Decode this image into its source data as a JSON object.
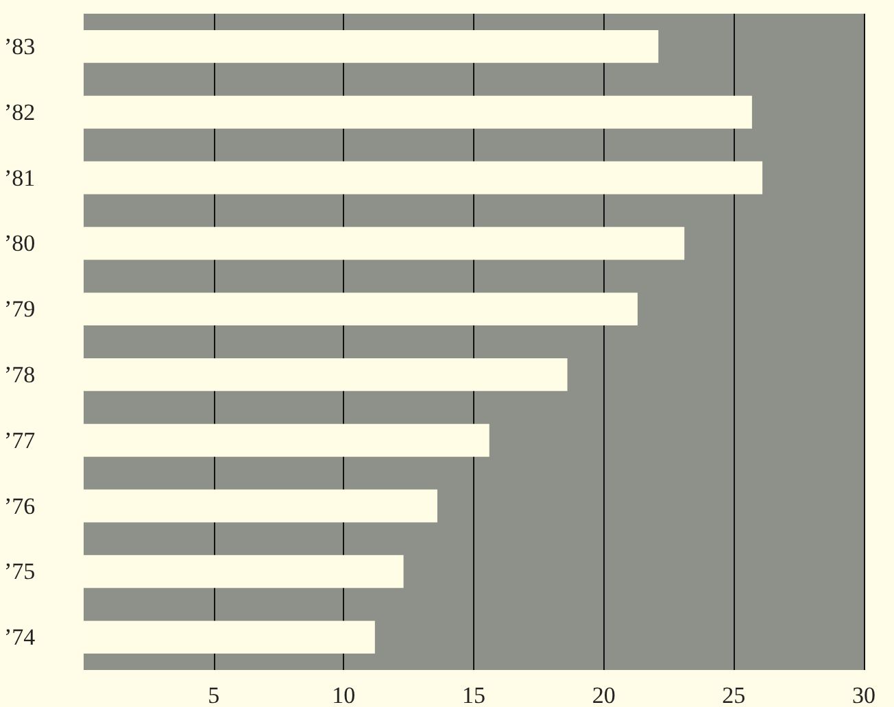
{
  "chart_data": {
    "type": "bar",
    "orientation": "horizontal",
    "categories": [
      "’83",
      "’82",
      "’81",
      "’80",
      "’79",
      "’78",
      "’77",
      "’76",
      "’75",
      "’74"
    ],
    "values": [
      22.1,
      25.7,
      26.1,
      23.1,
      21.3,
      18.6,
      15.6,
      13.6,
      12.3,
      11.2
    ],
    "color": "#fffde6",
    "xlim": [
      0,
      30
    ],
    "xticks": [
      5,
      10,
      15,
      20,
      25,
      30
    ],
    "grid": "x"
  }
}
